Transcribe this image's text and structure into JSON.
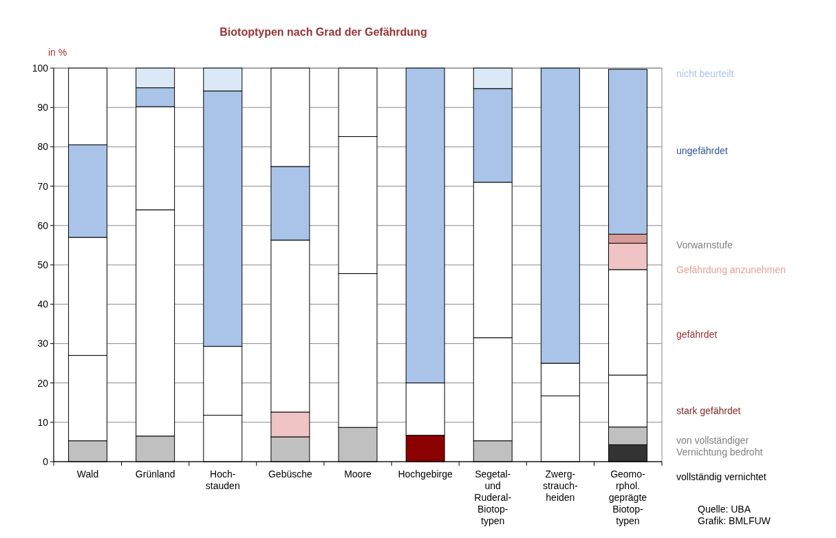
{
  "chart_data": {
    "type": "bar",
    "title": "Biotoptypen nach Grad der Gefährdung",
    "ylabel": "in %",
    "stacked": true,
    "grid": "y",
    "categories": [
      "Wald",
      "Grünland",
      "Hoch-\nstauden",
      "Gebüsche",
      "Moore",
      "Hochgebirge",
      "Segetal-\nund\nRuderal-\nBiotop-\ntypen",
      "Zwerg-\nstrauch-\nheiden",
      "Geomo-\nrphol.\ngeprägte\nBiotop-\ntypen"
    ],
    "ylim": [
      0,
      100
    ],
    "yticks": [
      0,
      10,
      20,
      30,
      40,
      50,
      60,
      70,
      80,
      90,
      100
    ],
    "series": [
      {
        "values": [
          5.3,
          6.5,
          11.8,
          6.3,
          8.7,
          6.7,
          5.3,
          16.7,
          4.3
        ],
        "colors": [
          "#c0c0c0",
          "#c0c0c0",
          "#ffffff",
          "#c0c0c0",
          "#c0c0c0",
          "#8b0000",
          "#c0c0c0",
          "#ffffff",
          "#333333"
        ]
      },
      {
        "values": [
          21.7,
          57.5,
          17.5,
          6.3,
          39.1,
          13.3,
          26.2,
          8.3,
          4.5
        ],
        "colors": [
          "#ffffff",
          "#ffffff",
          "#ffffff",
          "#f0c4c4",
          "#ffffff",
          "#ffffff",
          "#ffffff",
          "#ffffff",
          "#c0c0c0"
        ]
      },
      {
        "values": [
          30,
          26.2,
          64.9,
          43.7,
          34.8,
          80,
          39.5,
          75,
          13.2
        ],
        "colors": [
          "#ffffff",
          "#ffffff",
          "#a9c4e8",
          "#ffffff",
          "#ffffff",
          "#a9c4e8",
          "#ffffff",
          "#a9c4e8",
          "#ffffff"
        ]
      },
      {
        "values": [
          23.5,
          4.8,
          5.8,
          18.7,
          17.4,
          null,
          23.8,
          null,
          26.8
        ],
        "colors": [
          "#a9c4e8",
          "#a9c4e8",
          "#dbe9f7",
          "#a9c4e8",
          "#ffffff",
          null,
          "#a9c4e8",
          null,
          "#ffffff"
        ]
      },
      {
        "values": [
          19.5,
          5,
          null,
          25,
          null,
          null,
          5.2,
          null,
          6.7
        ],
        "colors": [
          "#ffffff",
          "#dbe9f7",
          null,
          "#ffffff",
          null,
          null,
          "#dbe9f7",
          null,
          "#f0c4c4"
        ]
      },
      {
        "values": [
          null,
          null,
          null,
          null,
          null,
          null,
          null,
          null,
          2.3
        ],
        "colors": [
          null,
          null,
          null,
          null,
          null,
          null,
          null,
          null,
          "#d89a9a"
        ]
      },
      {
        "values": [
          null,
          null,
          null,
          null,
          null,
          null,
          null,
          null,
          41.9
        ],
        "colors": [
          null,
          null,
          null,
          null,
          null,
          null,
          null,
          null,
          "#a9c4e8"
        ]
      }
    ],
    "annotations": [
      "nicht beurteilt",
      "ungefährdet",
      "Vorwarnstufe",
      "Gefährdung anzunehmen",
      "gefährdet",
      "stark gefährdet",
      "von vollständiger\nVernichtung bedroht",
      "vollständig vernichtet",
      "Quelle: UBA\nGrafik: BMLFUW"
    ]
  }
}
